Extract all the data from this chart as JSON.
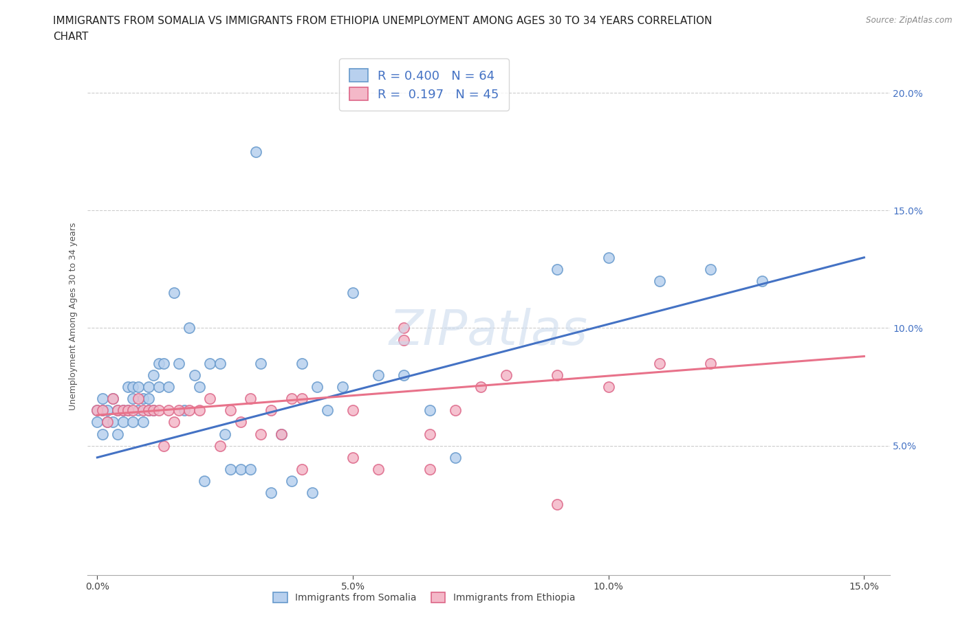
{
  "title_line1": "IMMIGRANTS FROM SOMALIA VS IMMIGRANTS FROM ETHIOPIA UNEMPLOYMENT AMONG AGES 30 TO 34 YEARS CORRELATION",
  "title_line2": "CHART",
  "source": "Source: ZipAtlas.com",
  "ylabel": "Unemployment Among Ages 30 to 34 years",
  "xlim": [
    -0.002,
    0.155
  ],
  "ylim": [
    -0.005,
    0.215
  ],
  "xticks": [
    0.0,
    0.05,
    0.1,
    0.15
  ],
  "yticks": [
    0.05,
    0.1,
    0.15,
    0.2
  ],
  "xtick_labels": [
    "0.0%",
    "5.0%",
    "10.0%",
    "15.0%"
  ],
  "ytick_labels": [
    "5.0%",
    "10.0%",
    "15.0%",
    "20.0%"
  ],
  "somalia_color": "#b8d0ee",
  "somalia_edge_color": "#6699cc",
  "ethiopia_color": "#f4b8c8",
  "ethiopia_edge_color": "#dd6688",
  "somalia_line_color": "#4472c4",
  "ethiopia_line_color": "#e8728a",
  "R_somalia": 0.4,
  "N_somalia": 64,
  "R_ethiopia": 0.197,
  "N_ethiopia": 45,
  "som_line_x0": 0.0,
  "som_line_y0": 0.045,
  "som_line_x1": 0.15,
  "som_line_y1": 0.13,
  "eth_line_x0": 0.0,
  "eth_line_y0": 0.063,
  "eth_line_x1": 0.15,
  "eth_line_y1": 0.088,
  "somalia_x": [
    0.0,
    0.0,
    0.001,
    0.001,
    0.001,
    0.002,
    0.002,
    0.003,
    0.003,
    0.004,
    0.004,
    0.005,
    0.005,
    0.006,
    0.006,
    0.007,
    0.007,
    0.007,
    0.008,
    0.008,
    0.009,
    0.009,
    0.01,
    0.01,
    0.01,
    0.011,
    0.011,
    0.012,
    0.012,
    0.013,
    0.014,
    0.015,
    0.016,
    0.017,
    0.018,
    0.019,
    0.02,
    0.021,
    0.022,
    0.024,
    0.025,
    0.026,
    0.028,
    0.03,
    0.031,
    0.032,
    0.034,
    0.036,
    0.038,
    0.04,
    0.042,
    0.043,
    0.045,
    0.048,
    0.05,
    0.055,
    0.06,
    0.065,
    0.07,
    0.09,
    0.1,
    0.11,
    0.12,
    0.13
  ],
  "somalia_y": [
    0.065,
    0.06,
    0.07,
    0.065,
    0.055,
    0.065,
    0.06,
    0.07,
    0.06,
    0.065,
    0.055,
    0.065,
    0.06,
    0.075,
    0.065,
    0.075,
    0.07,
    0.06,
    0.075,
    0.065,
    0.07,
    0.06,
    0.075,
    0.07,
    0.065,
    0.08,
    0.065,
    0.085,
    0.075,
    0.085,
    0.075,
    0.115,
    0.085,
    0.065,
    0.1,
    0.08,
    0.075,
    0.035,
    0.085,
    0.085,
    0.055,
    0.04,
    0.04,
    0.04,
    0.175,
    0.085,
    0.03,
    0.055,
    0.035,
    0.085,
    0.03,
    0.075,
    0.065,
    0.075,
    0.115,
    0.08,
    0.08,
    0.065,
    0.045,
    0.125,
    0.13,
    0.12,
    0.125,
    0.12
  ],
  "ethiopia_x": [
    0.0,
    0.001,
    0.002,
    0.003,
    0.004,
    0.005,
    0.006,
    0.007,
    0.008,
    0.009,
    0.01,
    0.011,
    0.012,
    0.013,
    0.014,
    0.015,
    0.016,
    0.018,
    0.02,
    0.022,
    0.024,
    0.026,
    0.028,
    0.03,
    0.032,
    0.034,
    0.036,
    0.038,
    0.04,
    0.05,
    0.055,
    0.06,
    0.065,
    0.07,
    0.075,
    0.08,
    0.09,
    0.1,
    0.11,
    0.12,
    0.06,
    0.04,
    0.05,
    0.065,
    0.09
  ],
  "ethiopia_y": [
    0.065,
    0.065,
    0.06,
    0.07,
    0.065,
    0.065,
    0.065,
    0.065,
    0.07,
    0.065,
    0.065,
    0.065,
    0.065,
    0.05,
    0.065,
    0.06,
    0.065,
    0.065,
    0.065,
    0.07,
    0.05,
    0.065,
    0.06,
    0.07,
    0.055,
    0.065,
    0.055,
    0.07,
    0.07,
    0.065,
    0.04,
    0.095,
    0.055,
    0.065,
    0.075,
    0.08,
    0.08,
    0.075,
    0.085,
    0.085,
    0.1,
    0.04,
    0.045,
    0.04,
    0.025
  ],
  "background_color": "#ffffff",
  "grid_color": "#cccccc",
  "title_fontsize": 11,
  "axis_fontsize": 9,
  "tick_fontsize": 10,
  "legend_fontsize": 13,
  "watermark_text": "ZIPatlas"
}
